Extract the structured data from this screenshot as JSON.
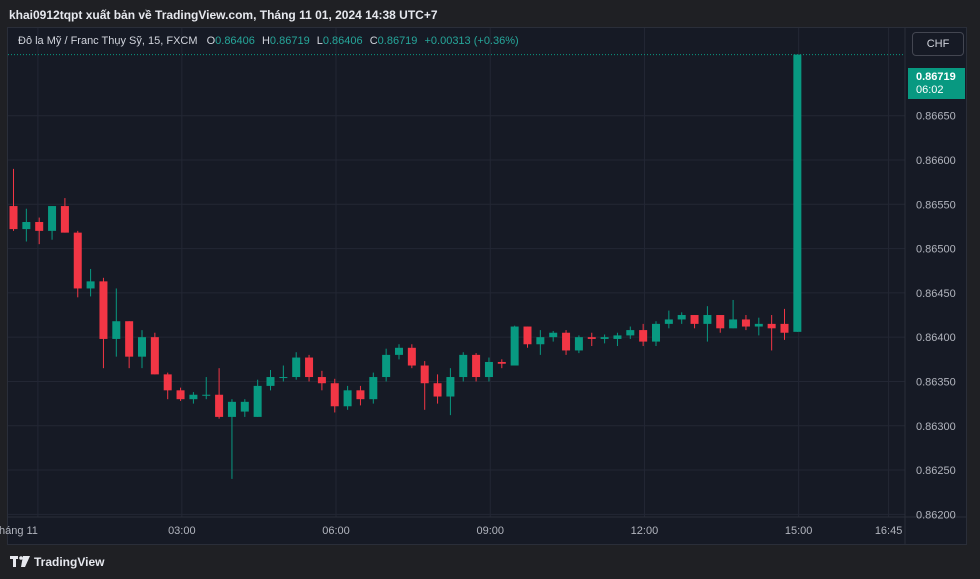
{
  "header": {
    "publisher_line": "khai0912tqpt xuất bản về TradingView.com, Tháng 11 01, 2024 14:38 UTC+7"
  },
  "legend": {
    "symbol": "Đô la Mỹ / Franc Thụy Sỹ, 15, FXCM",
    "o_label": "O",
    "o_value": "0.86406",
    "h_label": "H",
    "h_value": "0.86719",
    "l_label": "L",
    "l_value": "0.86406",
    "c_label": "C",
    "c_value": "0.86719",
    "change": "+0.00313 (+0.36%)"
  },
  "currency_button": "CHF",
  "last_price": {
    "value": "0.86719",
    "countdown": "06:02"
  },
  "footer": {
    "brand": "TradingView"
  },
  "colors": {
    "up": "#089981",
    "down": "#f23645",
    "background": "#161a25",
    "grid": "#232734",
    "text": "#b2b5be"
  },
  "chart_data": {
    "type": "candlestick",
    "interval": "15",
    "x_ticks": [
      "háng 11",
      "03:00",
      "06:00",
      "09:00",
      "12:00",
      "15:00",
      "16:45"
    ],
    "y_ticks": [
      0.8665,
      0.866,
      0.8655,
      0.865,
      0.8645,
      0.864,
      0.8635,
      0.863,
      0.8625,
      0.862
    ],
    "y_tick_labels": [
      "0.86650",
      "0.86600",
      "0.86550",
      "0.86500",
      "0.86450",
      "0.86400",
      "0.86350",
      "0.86300",
      "0.86250",
      "0.86200"
    ],
    "ylim": [
      0.86197,
      0.86749
    ],
    "last_price": 0.86719,
    "candles": [
      {
        "o": 0.86548,
        "h": 0.8659,
        "l": 0.8652,
        "c": 0.86522
      },
      {
        "o": 0.86522,
        "h": 0.86545,
        "l": 0.86508,
        "c": 0.8653
      },
      {
        "o": 0.8653,
        "h": 0.86535,
        "l": 0.86505,
        "c": 0.8652
      },
      {
        "o": 0.8652,
        "h": 0.86548,
        "l": 0.8651,
        "c": 0.86548
      },
      {
        "o": 0.86548,
        "h": 0.86557,
        "l": 0.86518,
        "c": 0.86518
      },
      {
        "o": 0.86518,
        "h": 0.8652,
        "l": 0.86445,
        "c": 0.86455
      },
      {
        "o": 0.86455,
        "h": 0.86477,
        "l": 0.86446,
        "c": 0.86463
      },
      {
        "o": 0.86463,
        "h": 0.86467,
        "l": 0.86365,
        "c": 0.86398
      },
      {
        "o": 0.86398,
        "h": 0.86455,
        "l": 0.86378,
        "c": 0.86418
      },
      {
        "o": 0.86418,
        "h": 0.86418,
        "l": 0.86365,
        "c": 0.86378
      },
      {
        "o": 0.86378,
        "h": 0.86408,
        "l": 0.86365,
        "c": 0.864
      },
      {
        "o": 0.864,
        "h": 0.86405,
        "l": 0.86358,
        "c": 0.86358
      },
      {
        "o": 0.86358,
        "h": 0.8636,
        "l": 0.8633,
        "c": 0.8634
      },
      {
        "o": 0.8634,
        "h": 0.86343,
        "l": 0.86328,
        "c": 0.8633
      },
      {
        "o": 0.8633,
        "h": 0.86338,
        "l": 0.86325,
        "c": 0.86335
      },
      {
        "o": 0.86335,
        "h": 0.86355,
        "l": 0.8633,
        "c": 0.86335
      },
      {
        "o": 0.86335,
        "h": 0.86365,
        "l": 0.86308,
        "c": 0.8631
      },
      {
        "o": 0.8631,
        "h": 0.8633,
        "l": 0.8624,
        "c": 0.86327
      },
      {
        "o": 0.86316,
        "h": 0.8633,
        "l": 0.8631,
        "c": 0.86327
      },
      {
        "o": 0.8631,
        "h": 0.86352,
        "l": 0.8631,
        "c": 0.86345
      },
      {
        "o": 0.86345,
        "h": 0.86363,
        "l": 0.8634,
        "c": 0.86355
      },
      {
        "o": 0.86355,
        "h": 0.86368,
        "l": 0.8635,
        "c": 0.86355
      },
      {
        "o": 0.86355,
        "h": 0.86383,
        "l": 0.86352,
        "c": 0.86377
      },
      {
        "o": 0.86377,
        "h": 0.8638,
        "l": 0.8635,
        "c": 0.86355
      },
      {
        "o": 0.86355,
        "h": 0.86362,
        "l": 0.8634,
        "c": 0.86348
      },
      {
        "o": 0.86348,
        "h": 0.86353,
        "l": 0.86315,
        "c": 0.86322
      },
      {
        "o": 0.86322,
        "h": 0.86345,
        "l": 0.86318,
        "c": 0.8634
      },
      {
        "o": 0.8634,
        "h": 0.86345,
        "l": 0.86323,
        "c": 0.8633
      },
      {
        "o": 0.8633,
        "h": 0.8636,
        "l": 0.86325,
        "c": 0.86355
      },
      {
        "o": 0.86355,
        "h": 0.86387,
        "l": 0.8635,
        "c": 0.8638
      },
      {
        "o": 0.8638,
        "h": 0.86392,
        "l": 0.86375,
        "c": 0.86388
      },
      {
        "o": 0.86388,
        "h": 0.86392,
        "l": 0.86365,
        "c": 0.86368
      },
      {
        "o": 0.86368,
        "h": 0.86373,
        "l": 0.86318,
        "c": 0.86348
      },
      {
        "o": 0.86348,
        "h": 0.86358,
        "l": 0.86325,
        "c": 0.86333
      },
      {
        "o": 0.86333,
        "h": 0.86365,
        "l": 0.86312,
        "c": 0.86355
      },
      {
        "o": 0.86355,
        "h": 0.86383,
        "l": 0.8635,
        "c": 0.8638
      },
      {
        "o": 0.8638,
        "h": 0.86382,
        "l": 0.8635,
        "c": 0.86355
      },
      {
        "o": 0.86355,
        "h": 0.86377,
        "l": 0.8635,
        "c": 0.86372
      },
      {
        "o": 0.86372,
        "h": 0.86375,
        "l": 0.86365,
        "c": 0.8637
      },
      {
        "o": 0.86368,
        "h": 0.86413,
        "l": 0.86368,
        "c": 0.86412
      },
      {
        "o": 0.86412,
        "h": 0.86412,
        "l": 0.86388,
        "c": 0.86392
      },
      {
        "o": 0.86392,
        "h": 0.86408,
        "l": 0.8638,
        "c": 0.864
      },
      {
        "o": 0.864,
        "h": 0.86407,
        "l": 0.86395,
        "c": 0.86405
      },
      {
        "o": 0.86405,
        "h": 0.86408,
        "l": 0.8638,
        "c": 0.86385
      },
      {
        "o": 0.86385,
        "h": 0.86402,
        "l": 0.86382,
        "c": 0.864
      },
      {
        "o": 0.864,
        "h": 0.86405,
        "l": 0.8639,
        "c": 0.86398
      },
      {
        "o": 0.86398,
        "h": 0.86403,
        "l": 0.86393,
        "c": 0.864
      },
      {
        "o": 0.86398,
        "h": 0.86405,
        "l": 0.8639,
        "c": 0.86402
      },
      {
        "o": 0.86402,
        "h": 0.86412,
        "l": 0.86398,
        "c": 0.86408
      },
      {
        "o": 0.86408,
        "h": 0.86415,
        "l": 0.8639,
        "c": 0.86395
      },
      {
        "o": 0.86395,
        "h": 0.86418,
        "l": 0.8639,
        "c": 0.86415
      },
      {
        "o": 0.86415,
        "h": 0.8643,
        "l": 0.8641,
        "c": 0.8642
      },
      {
        "o": 0.8642,
        "h": 0.86428,
        "l": 0.86415,
        "c": 0.86425
      },
      {
        "o": 0.86425,
        "h": 0.86425,
        "l": 0.8641,
        "c": 0.86415
      },
      {
        "o": 0.86415,
        "h": 0.86435,
        "l": 0.86395,
        "c": 0.86425
      },
      {
        "o": 0.86425,
        "h": 0.86425,
        "l": 0.86405,
        "c": 0.8641
      },
      {
        "o": 0.8641,
        "h": 0.86442,
        "l": 0.8641,
        "c": 0.8642
      },
      {
        "o": 0.8642,
        "h": 0.86425,
        "l": 0.86408,
        "c": 0.86412
      },
      {
        "o": 0.86412,
        "h": 0.86422,
        "l": 0.86402,
        "c": 0.86415
      },
      {
        "o": 0.86415,
        "h": 0.86425,
        "l": 0.86385,
        "c": 0.8641
      },
      {
        "o": 0.86415,
        "h": 0.86432,
        "l": 0.86397,
        "c": 0.86405
      },
      {
        "o": 0.86406,
        "h": 0.86719,
        "l": 0.86406,
        "c": 0.86719
      }
    ]
  }
}
